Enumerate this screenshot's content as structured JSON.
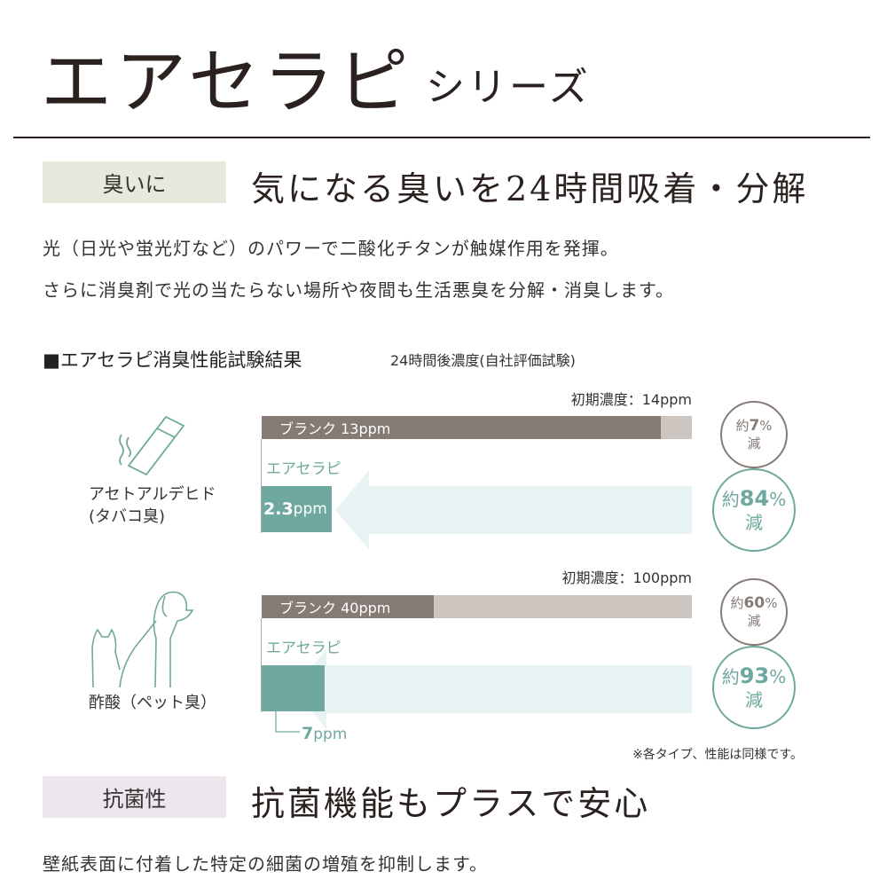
{
  "header": {
    "title": "エアセラピ",
    "subtitle": "シリーズ"
  },
  "section1": {
    "tag": "臭いに",
    "tag_color": "#e6e9dc",
    "heading": "気になる臭いを24時間吸着・分解",
    "lines": [
      "光（日光や蛍光灯など）のパワーで二酸化チタンが触媒作用を発揮。",
      "さらに消臭剤で光の当たらない場所や夜間も生活悪臭を分解・消臭します。"
    ]
  },
  "results": {
    "title": "■エアセラピ消臭性能試験結果",
    "subtitle": "24時間後濃度(自社評価試験)",
    "note": "※各タイプ、性能は同様です。",
    "colors": {
      "blank": "#857a74",
      "blank_track": "#cdc5c0",
      "airtherapy": "#6fa89e",
      "arrow": "#e9f3f3"
    },
    "tests": [
      {
        "substance": "アセトアルデヒド",
        "odor": "(タバコ臭)",
        "icon": "cigarette-icon",
        "initial": "初期濃度：14ppm",
        "initial_ppm": 14,
        "blank_label": "ブランク 13ppm",
        "blank_ppm": 13,
        "product_label": "エアセラピ",
        "product_value": "2.3",
        "product_unit": "ppm",
        "product_ppm": 2.3,
        "blank_reduction": {
          "prefix": "約",
          "value": "7",
          "unit": "%",
          "suffix": "減"
        },
        "product_reduction": {
          "prefix": "約",
          "value": "84",
          "unit": "%",
          "suffix": "減"
        }
      },
      {
        "substance": "酢酸",
        "odor": "（ペット臭）",
        "icon": "dog-cat-icon",
        "initial": "初期濃度：100ppm",
        "initial_ppm": 100,
        "blank_label": "ブランク 40ppm",
        "blank_ppm": 40,
        "product_label": "エアセラピ",
        "product_value": "7",
        "product_unit": "ppm",
        "product_ppm": 7,
        "blank_reduction": {
          "prefix": "約",
          "value": "60",
          "unit": "%",
          "suffix": "減"
        },
        "product_reduction": {
          "prefix": "約",
          "value": "93",
          "unit": "%",
          "suffix": "減"
        }
      }
    ]
  },
  "section2": {
    "tag": "抗菌性",
    "tag_color": "#ede6ec",
    "heading": "抗菌機能もプラスで安心",
    "lines": [
      "壁紙表面に付着した特定の細菌の増殖を抑制します。"
    ]
  }
}
